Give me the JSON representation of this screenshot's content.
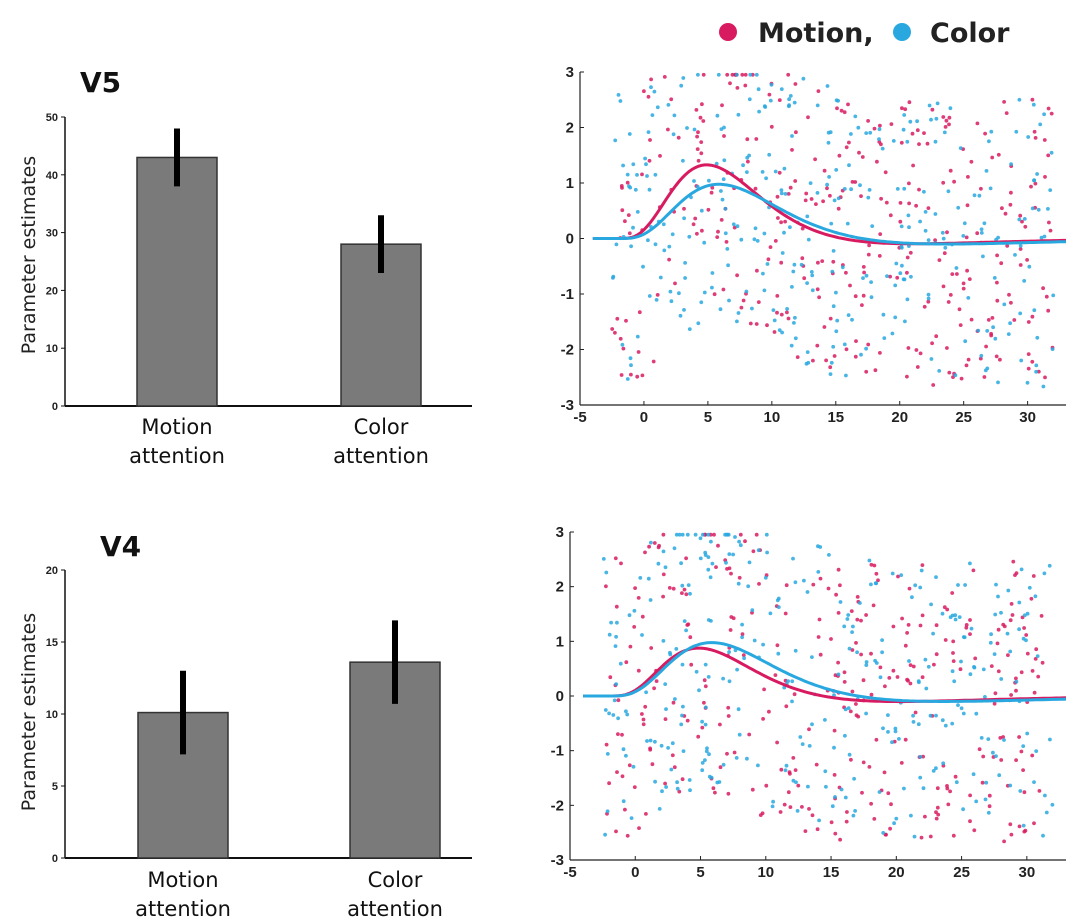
{
  "legend": {
    "items": [
      {
        "label": "Motion,",
        "color": "#d81b60"
      },
      {
        "label": "Color",
        "color": "#29a8e0"
      }
    ]
  },
  "colors": {
    "bar": "#7a7a7a",
    "motion": "#d81b60",
    "color": "#29a8e0"
  },
  "chart_data": [
    {
      "type": "bar",
      "title": "V5",
      "ylabel": "Parameter estimates",
      "categories": [
        [
          "Motion",
          "attention"
        ],
        [
          "Color",
          "attention"
        ]
      ],
      "values": [
        43,
        28
      ],
      "error": [
        5,
        5
      ],
      "ylim": [
        0,
        50
      ],
      "yticks": [
        0,
        10,
        20,
        30,
        40,
        50
      ]
    },
    {
      "type": "scatter",
      "series": [
        {
          "name": "Motion",
          "fit_peak": 1.35,
          "fit_peak_x": 5
        },
        {
          "name": "Color",
          "fit_peak": 1.0,
          "fit_peak_x": 6
        }
      ],
      "xlim": [
        -5,
        33
      ],
      "ylim": [
        -3,
        3
      ],
      "xticks": [
        -5,
        0,
        5,
        10,
        15,
        20,
        25,
        30
      ],
      "yticks": [
        -3,
        -2,
        -1,
        0,
        1,
        2,
        3
      ]
    },
    {
      "type": "bar",
      "title": "V4",
      "ylabel": "Parameter estimates",
      "categories": [
        [
          "Motion",
          "attention"
        ],
        [
          "Color",
          "attention"
        ]
      ],
      "values": [
        10.1,
        13.6
      ],
      "error": [
        2.9,
        2.9
      ],
      "ylim": [
        0,
        20
      ],
      "yticks": [
        0,
        5,
        10,
        15,
        20
      ]
    },
    {
      "type": "scatter",
      "series": [
        {
          "name": "Motion",
          "fit_peak": 0.9,
          "fit_peak_x": 5
        },
        {
          "name": "Color",
          "fit_peak": 1.0,
          "fit_peak_x": 6
        }
      ],
      "xlim": [
        -5,
        33
      ],
      "ylim": [
        -3,
        3
      ],
      "xticks": [
        -5,
        0,
        5,
        10,
        15,
        20,
        25,
        30
      ],
      "yticks": [
        -3,
        -2,
        -1,
        0,
        1,
        2,
        3
      ]
    }
  ]
}
